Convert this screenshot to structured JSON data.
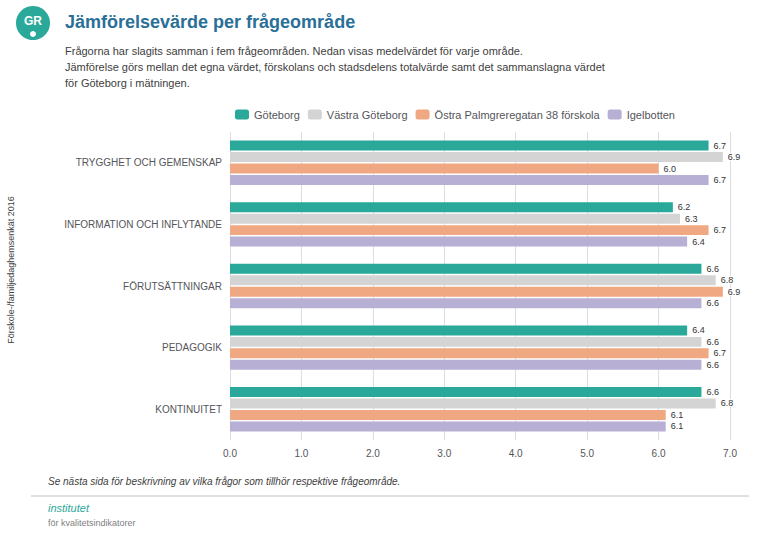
{
  "chart_data": {
    "type": "bar",
    "orientation": "horizontal",
    "title": "Jämförelsevärde per frågeområde",
    "subtitle": [
      "Frågorna har slagits samman i fem frågeområden. Nedan visas medelvärdet för varje område.",
      "Jämförelse görs mellan det egna värdet, förskolans och stadsdelens totalvärde samt det sammanslagna värdet",
      "för Göteborg i mätningen."
    ],
    "annotations": [
      "Förskole-/familjedaghemsenkät 2016",
      "Se nästa sida för beskrivning av vilka frågor som tillhör respektive frågeområde.",
      "GR",
      "institutet",
      "för kvalitetsindikatorer"
    ],
    "categories": [
      "TRYGGHET OCH GEMENSKAP",
      "INFORMATION OCH INFLYTANDE",
      "FÖRUTSÄTTNINGAR",
      "PEDAGOGIK",
      "KONTINUITET"
    ],
    "series": [
      {
        "name": "Göteborg",
        "color": "#2aa89a",
        "values": [
          6.7,
          6.2,
          6.6,
          6.4,
          6.6
        ],
        "value_labels": [
          "6.7",
          "6.2",
          "6.6",
          "6.4",
          "6.6"
        ]
      },
      {
        "name": "Västra Göteborg",
        "color": "#d4d4d4",
        "values": [
          6.9,
          6.3,
          6.8,
          6.6,
          6.8
        ],
        "value_labels": [
          "6.9",
          "6.3",
          "6.8",
          "6.6",
          "6.8"
        ]
      },
      {
        "name": "Östra Palmgreregatan 38 förskola",
        "color": "#f0a882",
        "values": [
          6.0,
          6.7,
          6.9,
          6.7,
          6.1
        ],
        "value_labels": [
          "6.0",
          "6.7",
          "6.9",
          "6.7",
          "6.1"
        ]
      },
      {
        "name": "Igelbotten",
        "color": "#b8b0d4",
        "values": [
          6.7,
          6.4,
          6.6,
          6.6,
          6.1
        ],
        "value_labels": [
          "6.7",
          "6.4",
          "6.6",
          "6.6",
          "6.1"
        ]
      }
    ],
    "xlim": [
      0.0,
      7.0
    ],
    "xticks": [
      {
        "value": 0,
        "label": "0.0"
      },
      {
        "value": 1,
        "label": "1.0"
      },
      {
        "value": 2,
        "label": "2.0"
      },
      {
        "value": 3,
        "label": "3.0"
      },
      {
        "value": 4,
        "label": "4.0"
      },
      {
        "value": 5,
        "label": "5.0"
      },
      {
        "value": 6,
        "label": "6.0"
      },
      {
        "value": 7,
        "label": "7.0"
      }
    ],
    "grid": true,
    "legend": "upper left",
    "data_labels": true
  }
}
